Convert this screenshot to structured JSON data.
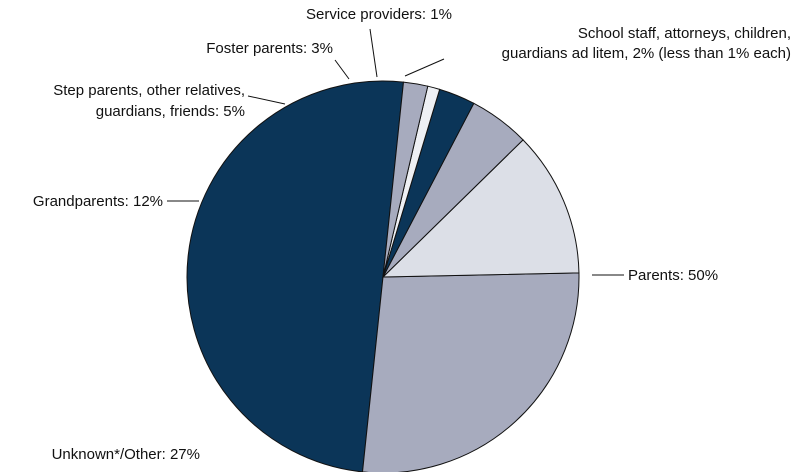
{
  "chart_data": {
    "type": "pie",
    "slices": [
      {
        "label": "Parents: 50%",
        "value": 50,
        "color": "#0b3558"
      },
      {
        "label": "Unknown*/Other: 27%",
        "value": 27,
        "color": "#a7abbe"
      },
      {
        "label": "Grandparents: 12%",
        "value": 12,
        "color": "#dcdfe7"
      },
      {
        "label": "Step parents, other relatives, guardians, friends: 5%",
        "label_lines": [
          "Step parents, other relatives,",
          "guardians, friends: 5%"
        ],
        "value": 5,
        "color": "#a7abbe"
      },
      {
        "label": "Foster parents: 3%",
        "value": 3,
        "color": "#0b3558"
      },
      {
        "label": "Service providers: 1%",
        "value": 1,
        "color": "#eef0f4"
      },
      {
        "label": "School staff, attorneys, children, guardians ad litem, 2% (less than 1% each)",
        "label_lines": [
          "School staff, attorneys, children,",
          "guardians ad litem, 2% (less than 1% each)"
        ],
        "value": 2,
        "color": "#a7abbe"
      }
    ]
  }
}
